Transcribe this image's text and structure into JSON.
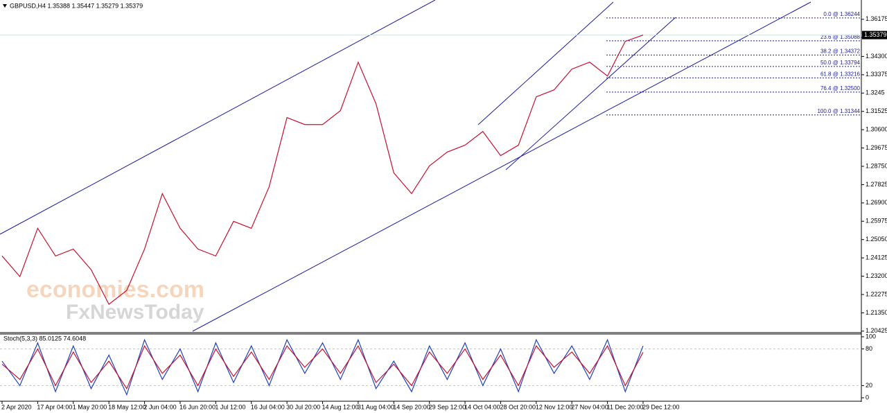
{
  "chart_data": [
    {
      "type": "line",
      "title": "GBPUSD,H4 1.35388 1.35447 1.35279 1.35379",
      "watermark": [
        "economies.com",
        "FxNewsToday"
      ],
      "categories": [
        "2 Apr 2020",
        null,
        "17 Apr 04:00",
        null,
        "1 May 20:00",
        null,
        "18 May 12:00",
        null,
        "2 Jun 04:00",
        null,
        "16 Jun 20:00",
        null,
        "1 Jul 12:00",
        null,
        "16 Jul 04:00",
        null,
        "30 Jul 20:00",
        null,
        "14 Aug 12:00",
        null,
        "31 Aug 04:00",
        null,
        "14 Sep 20:00",
        null,
        "29 Sep 12:00",
        null,
        "14 Oct 04:00",
        null,
        "28 Oct 20:00",
        null,
        "12 Nov 12:00",
        null,
        "27 Nov 04:00",
        null,
        "11 Dec 20:00",
        null,
        "29 Dec 12:00"
      ],
      "series": [
        {
          "color": "#c8102e",
          "values": [
            1.2422,
            1.2318,
            1.2562,
            1.2422,
            1.2457,
            1.2353,
            1.2178,
            1.2248,
            1.2457,
            1.2737,
            1.2562,
            1.2457,
            1.2422,
            1.2597,
            1.2562,
            1.2772,
            1.3121,
            1.3086,
            1.3086,
            1.3156,
            1.3401,
            1.3191,
            1.2842,
            1.2737,
            1.2877,
            1.2947,
            1.2982,
            1.3051,
            1.2929,
            1.2982,
            1.3226,
            1.3261,
            1.3366,
            1.3401,
            1.3331,
            1.3506,
            1.35379
          ]
        }
      ],
      "last_price": 1.35379,
      "ylim": [
        1.2035,
        1.3715
      ],
      "yticks": [
        1.36175,
        {
          "value": 1.3525,
          "label": "1.35250"
        },
        {
          "value": 1.343,
          "label": "1.34300"
        },
        1.33375,
        1.3245,
        1.31525,
        {
          "value": 1.306,
          "label": "1.30600"
        },
        1.29675,
        {
          "value": 1.2875,
          "label": "1.28750"
        },
        1.27825,
        {
          "value": 1.269,
          "label": "1.26900"
        },
        1.25975,
        {
          "value": 1.2505,
          "label": "1.25050"
        },
        1.24125,
        {
          "value": 1.232,
          "label": "1.23200"
        },
        1.22275,
        {
          "value": 1.2135,
          "label": "1.21350"
        },
        1.20425
      ],
      "fibonacci": [
        {
          "label": "0.0 @ 1.36244",
          "value": 1.36244
        },
        {
          "label": "23.6 @ 1.35088",
          "value": 1.35088
        },
        {
          "label": "38.2 @ 1.34372",
          "value": 1.34372
        },
        {
          "label": "50.0 @ 1.33794",
          "value": 1.33794
        },
        {
          "label": "61.8 @ 1.33216",
          "value": 1.33216
        },
        {
          "label": "76.4 @ 1.32500",
          "value": 1.325
        },
        {
          "label": "100.0 @ 1.31344",
          "value": 1.31344
        }
      ]
    },
    {
      "type": "line",
      "title": "Stoch(5,3,3) 85.0125 74.6048",
      "series": [
        {
          "color": "#1f3fbf",
          "values": [
            60,
            20,
            90,
            10,
            85,
            15,
            70,
            5,
            95,
            30,
            80,
            10,
            90,
            25,
            85,
            20,
            95,
            40,
            90,
            30,
            95,
            15,
            60,
            10,
            85,
            30,
            90,
            20,
            80,
            10,
            95,
            40,
            85,
            30,
            95,
            10,
            85.0125
          ]
        },
        {
          "color": "#c8102e",
          "values": [
            55,
            30,
            80,
            20,
            75,
            25,
            60,
            15,
            85,
            40,
            70,
            20,
            80,
            35,
            75,
            30,
            85,
            50,
            80,
            40,
            85,
            25,
            55,
            20,
            75,
            40,
            80,
            30,
            70,
            20,
            85,
            50,
            75,
            40,
            85,
            20,
            74.6048
          ]
        }
      ],
      "ylim": [
        -4.5,
        104.5
      ],
      "yticks": [
        100,
        80,
        20,
        0
      ]
    }
  ]
}
